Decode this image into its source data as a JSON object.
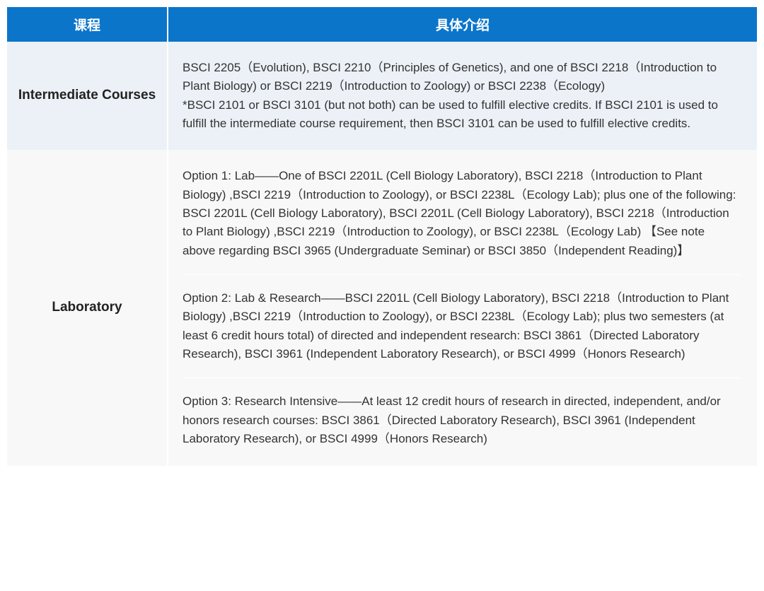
{
  "table": {
    "header": {
      "col1": "课程",
      "col2": "具体介绍"
    },
    "rows": [
      {
        "label": "Intermediate Courses",
        "bg_color": "#ebf1f6",
        "content": [
          "BSCI 2205（Evolution), BSCI 2210（Principles of Genetics), and one of BSCI 2218（Introduction to Plant Biology) or BSCI 2219（Introduction to Zoology) or BSCI 2238（Ecology)\n*BSCI 2101 or BSCI 3101 (but not both) can be used to fulfill elective credits. If BSCI 2101 is used to fulfill the intermediate course requirement, then BSCI 3101 can be used to fulfill elective credits."
        ]
      },
      {
        "label": "Laboratory",
        "bg_color": "#f8f8f8",
        "content": [
          "Option 1: Lab——One of BSCI 2201L (Cell Biology Laboratory), BSCI 2218（Introduction to Plant Biology) ,BSCI 2219（Introduction to Zoology), or BSCI 2238L（Ecology Lab); plus one of the following: BSCI 2201L (Cell Biology Laboratory), BSCI 2201L (Cell Biology Laboratory), BSCI 2218（Introduction to Plant Biology) ,BSCI 2219（Introduction to Zoology), or BSCI 2238L（Ecology Lab) 【See note above regarding BSCI 3965 (Undergraduate Seminar) or BSCI 3850（Independent Reading)】",
          "Option 2: Lab & Research——BSCI 2201L (Cell Biology Laboratory), BSCI 2218（Introduction to Plant Biology) ,BSCI 2219（Introduction to Zoology), or BSCI 2238L（Ecology Lab); plus two semesters (at least 6 credit hours total) of directed and independent research: BSCI 3861（Directed Laboratory Research), BSCI 3961 (Independent Laboratory Research), or BSCI 4999（Honors Research)",
          "Option 3: Research Intensive——At least 12 credit hours of research in directed, independent, and/or honors research courses: BSCI 3861（Directed Laboratory Research), BSCI 3961 (Independent Laboratory Research), or BSCI 4999（Honors Research)"
        ]
      }
    ],
    "style": {
      "header_bg": "#0b75c9",
      "header_fg": "#ffffff",
      "row1_bg": "#ebf1f6",
      "row2_bg": "#f8f8f8",
      "text_color": "#333333",
      "label_color": "#222222",
      "border_color": "#ffffff",
      "header_fontsize": 19,
      "body_fontsize": 17,
      "label_fontsize": 19
    }
  }
}
